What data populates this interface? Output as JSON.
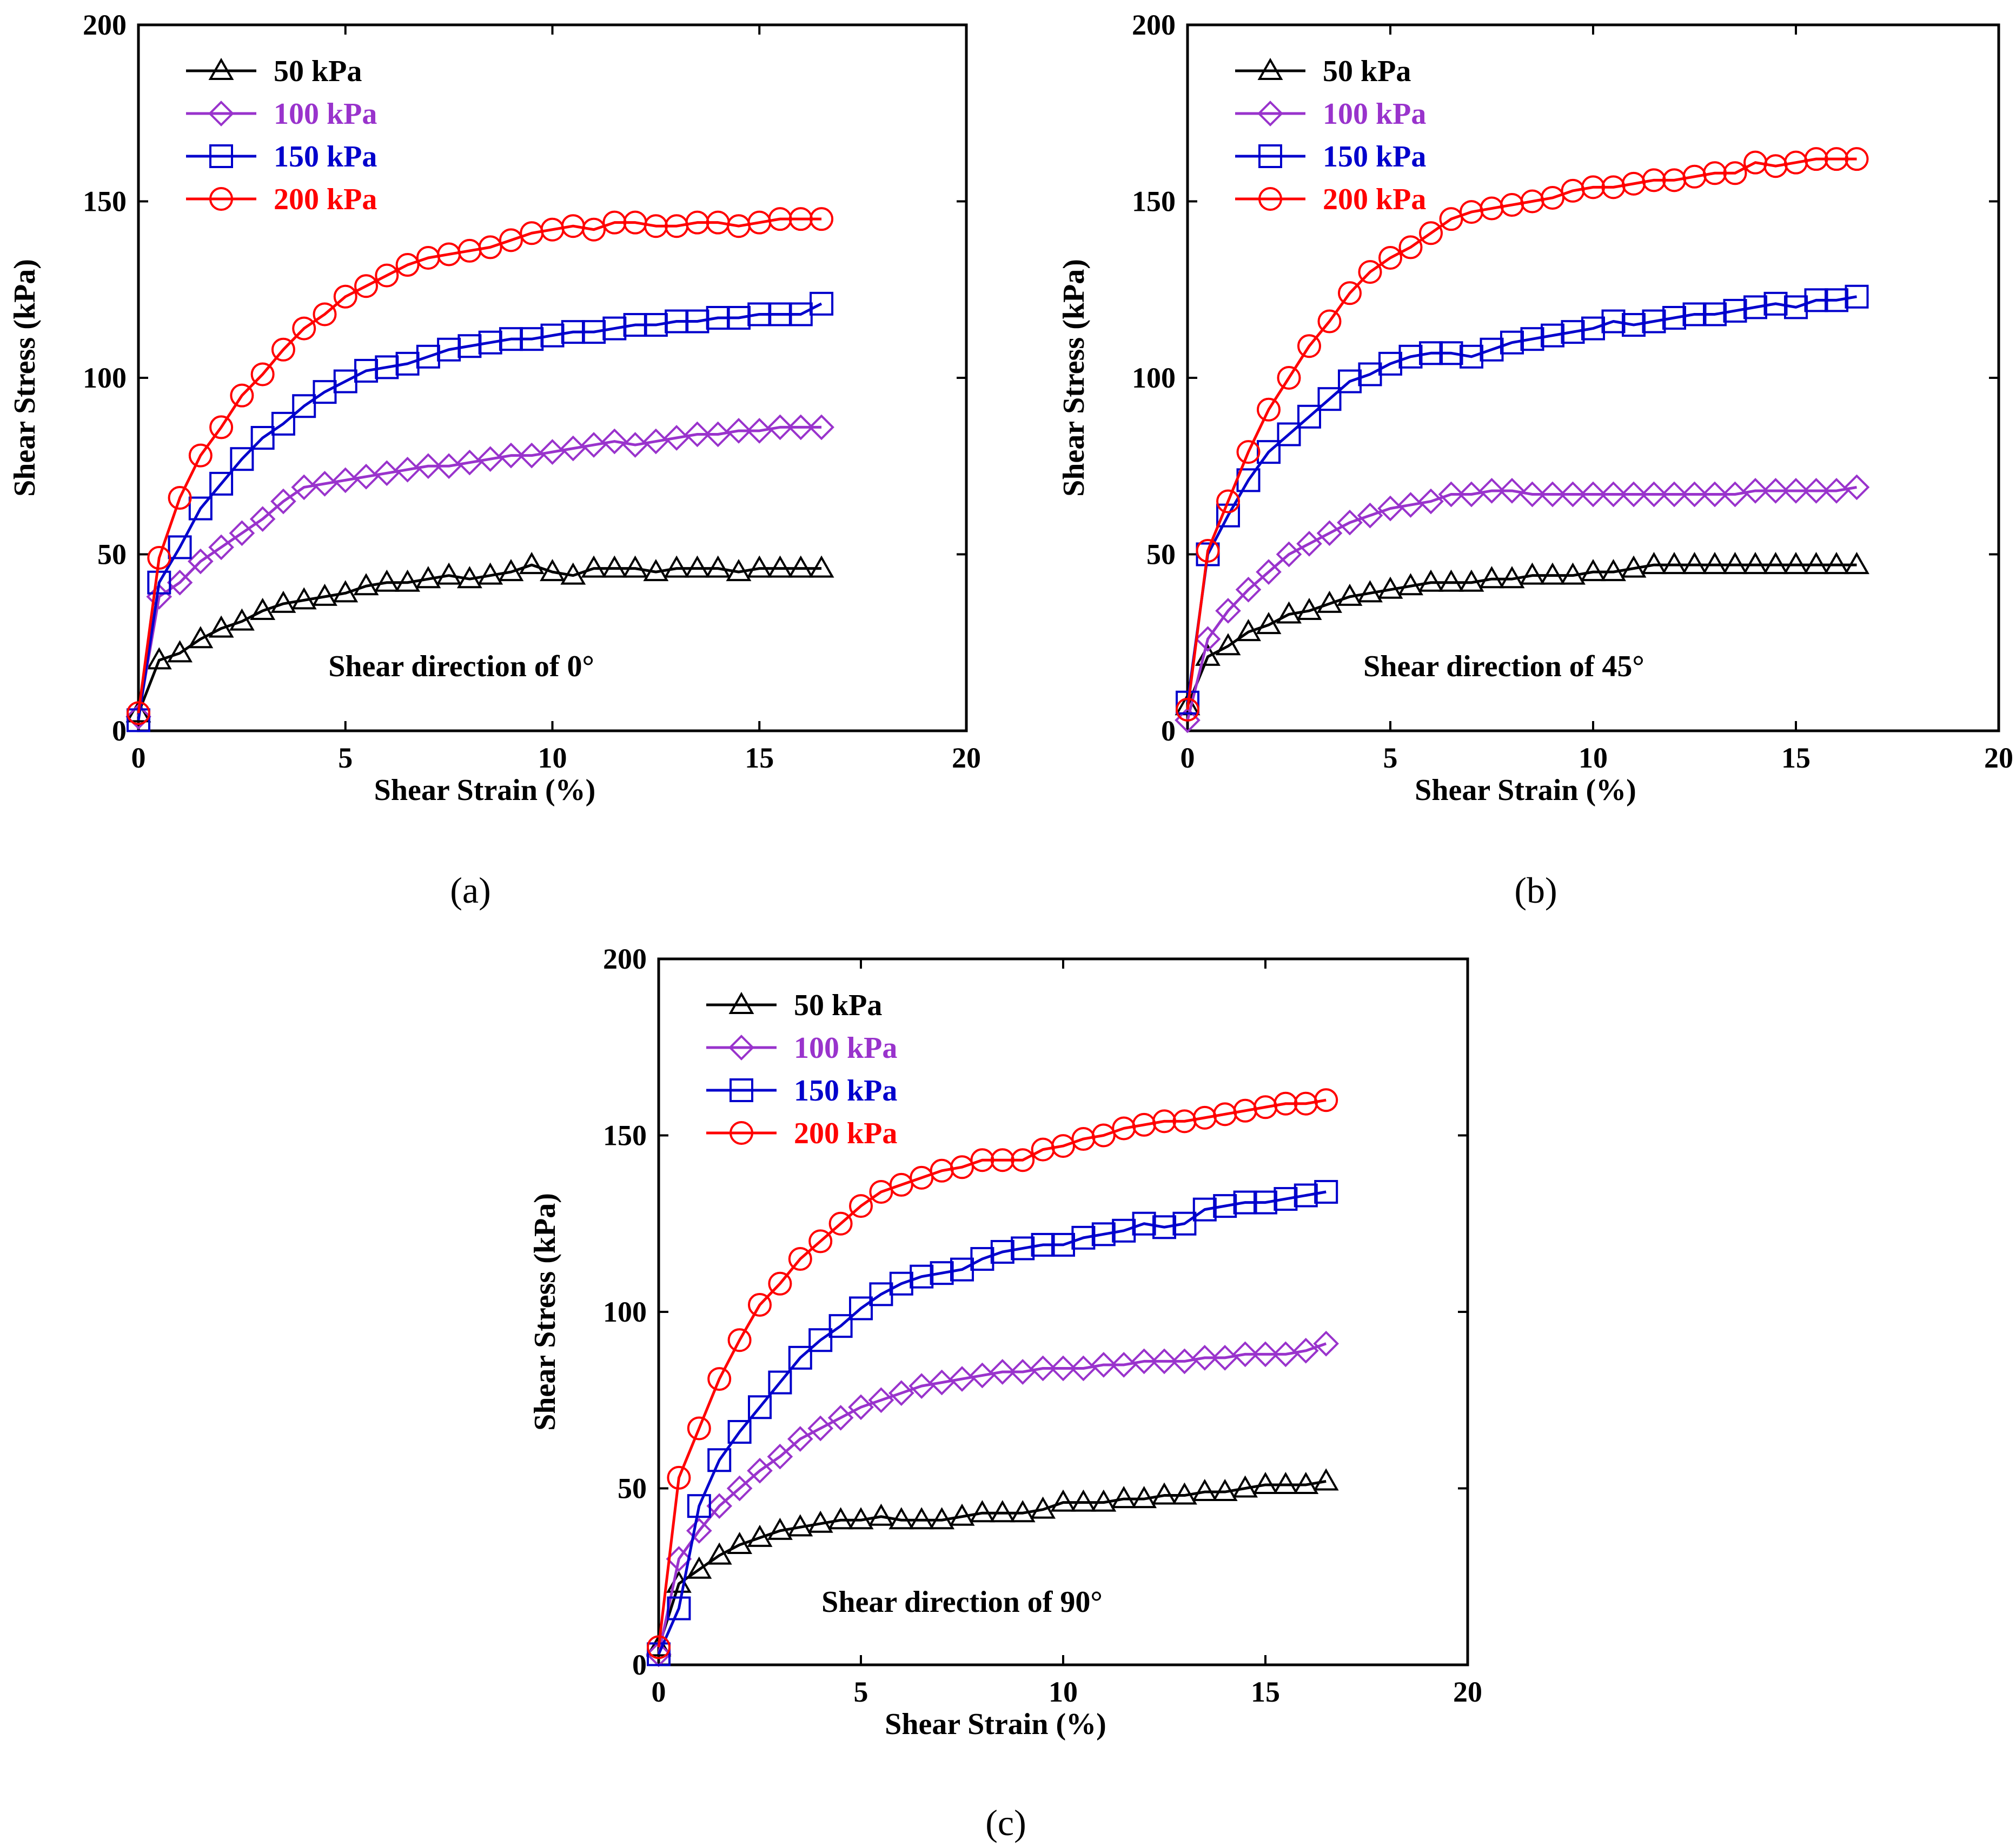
{
  "figure": {
    "panel_labels": [
      "(a)",
      "(b)",
      "(c)"
    ]
  },
  "chart_data": [
    {
      "type": "line",
      "panel": "(a)",
      "annotation": "Shear direction of 0°",
      "xlabel": "Shear Strain (%)",
      "ylabel": "Shear Stress (kPa)",
      "xlim": [
        0,
        20
      ],
      "ylim": [
        0,
        200
      ],
      "xticks": [
        0,
        5,
        10,
        15,
        20
      ],
      "yticks": [
        0,
        50,
        100,
        150,
        200
      ],
      "legend_position": "top-left",
      "series": [
        {
          "name": "50 kPa",
          "color": "#000000",
          "marker": "triangle",
          "x": [
            0,
            0.5,
            1,
            1.5,
            2,
            2.5,
            3,
            3.5,
            4,
            4.5,
            5,
            5.5,
            6,
            6.5,
            7,
            7.5,
            8,
            8.5,
            9,
            9.5,
            10,
            10.5,
            11,
            11.5,
            12,
            12.5,
            13,
            13.5,
            14,
            14.5,
            15,
            15.5,
            16,
            16.5
          ],
          "y": [
            5,
            20,
            22,
            26,
            29,
            31,
            34,
            36,
            37,
            38,
            39,
            41,
            42,
            42,
            43,
            44,
            43,
            44,
            45,
            47,
            45,
            44,
            46,
            46,
            46,
            45,
            46,
            46,
            46,
            45,
            46,
            46,
            46,
            46
          ]
        },
        {
          "name": "100 kPa",
          "color": "#9933cc",
          "marker": "diamond",
          "x": [
            0,
            0.5,
            1,
            1.5,
            2,
            2.5,
            3,
            3.5,
            4,
            4.5,
            5,
            5.5,
            6,
            6.5,
            7,
            7.5,
            8,
            8.5,
            9,
            9.5,
            10,
            10.5,
            11,
            11.5,
            12,
            12.5,
            13,
            13.5,
            14,
            14.5,
            15,
            15.5,
            16,
            16.5
          ],
          "y": [
            4,
            38,
            42,
            48,
            52,
            56,
            60,
            65,
            69,
            70,
            71,
            72,
            73,
            74,
            75,
            75,
            76,
            77,
            78,
            78,
            79,
            80,
            81,
            82,
            81,
            82,
            83,
            84,
            84,
            85,
            85,
            86,
            86,
            86
          ]
        },
        {
          "name": "150 kPa",
          "color": "#0000cc",
          "marker": "square",
          "x": [
            0,
            0.5,
            1,
            1.5,
            2,
            2.5,
            3,
            3.5,
            4,
            4.5,
            5,
            5.5,
            6,
            6.5,
            7,
            7.5,
            8,
            8.5,
            9,
            9.5,
            10,
            10.5,
            11,
            11.5,
            12,
            12.5,
            13,
            13.5,
            14,
            14.5,
            15,
            15.5,
            16,
            16.5
          ],
          "y": [
            3,
            42,
            52,
            63,
            70,
            77,
            83,
            87,
            92,
            96,
            99,
            102,
            103,
            104,
            106,
            108,
            109,
            110,
            111,
            111,
            112,
            113,
            113,
            114,
            115,
            115,
            116,
            116,
            117,
            117,
            118,
            118,
            118,
            121
          ]
        },
        {
          "name": "200 kPa",
          "color": "#ff0000",
          "marker": "circle",
          "x": [
            0,
            0.5,
            1,
            1.5,
            2,
            2.5,
            3,
            3.5,
            4,
            4.5,
            5,
            5.5,
            6,
            6.5,
            7,
            7.5,
            8,
            8.5,
            9,
            9.5,
            10,
            10.5,
            11,
            11.5,
            12,
            12.5,
            13,
            13.5,
            14,
            14.5,
            15,
            15.5,
            16,
            16.5
          ],
          "y": [
            5,
            49,
            66,
            78,
            86,
            95,
            101,
            108,
            114,
            118,
            123,
            126,
            129,
            132,
            134,
            135,
            136,
            137,
            139,
            141,
            142,
            143,
            142,
            144,
            144,
            143,
            143,
            144,
            144,
            143,
            144,
            145,
            145,
            145
          ]
        }
      ]
    },
    {
      "type": "line",
      "panel": "(b)",
      "annotation": "Shear direction of  45°",
      "xlabel": "Shear Strain (%)",
      "ylabel": "Shear Stress (kPa)",
      "xlim": [
        0,
        20
      ],
      "ylim": [
        0,
        200
      ],
      "xticks": [
        0,
        5,
        10,
        15,
        20
      ],
      "yticks": [
        0,
        50,
        100,
        150,
        200
      ],
      "legend_position": "top-left",
      "series": [
        {
          "name": "50 kPa",
          "color": "#000000",
          "marker": "triangle",
          "x": [
            0,
            0.5,
            1,
            1.5,
            2,
            2.5,
            3,
            3.5,
            4,
            4.5,
            5,
            5.5,
            6,
            6.5,
            7,
            7.5,
            8,
            8.5,
            9,
            9.5,
            10,
            10.5,
            11,
            11.5,
            12,
            12.5,
            13,
            13.5,
            14,
            14.5,
            15,
            15.5,
            16,
            16.5
          ],
          "y": [
            7,
            21,
            24,
            28,
            30,
            33,
            34,
            36,
            38,
            39,
            40,
            41,
            42,
            42,
            42,
            43,
            43,
            44,
            44,
            44,
            45,
            45,
            46,
            47,
            47,
            47,
            47,
            47,
            47,
            47,
            47,
            47,
            47,
            47
          ]
        },
        {
          "name": "100 kPa",
          "color": "#9933cc",
          "marker": "diamond",
          "x": [
            0,
            0.5,
            1,
            1.5,
            2,
            2.5,
            3,
            3.5,
            4,
            4.5,
            5,
            5.5,
            6,
            6.5,
            7,
            7.5,
            8,
            8.5,
            9,
            9.5,
            10,
            10.5,
            11,
            11.5,
            12,
            12.5,
            13,
            13.5,
            14,
            14.5,
            15,
            15.5,
            16,
            16.5
          ],
          "y": [
            3,
            26,
            34,
            40,
            45,
            50,
            53,
            56,
            59,
            61,
            63,
            64,
            65,
            67,
            67,
            68,
            68,
            67,
            67,
            67,
            67,
            67,
            67,
            67,
            67,
            67,
            67,
            67,
            68,
            68,
            68,
            68,
            68,
            69
          ]
        },
        {
          "name": "150 kPa",
          "color": "#0000cc",
          "marker": "square",
          "x": [
            0,
            0.5,
            1,
            1.5,
            2,
            2.5,
            3,
            3.5,
            4,
            4.5,
            5,
            5.5,
            6,
            6.5,
            7,
            7.5,
            8,
            8.5,
            9,
            9.5,
            10,
            10.5,
            11,
            11.5,
            12,
            12.5,
            13,
            13.5,
            14,
            14.5,
            15,
            15.5,
            16,
            16.5
          ],
          "y": [
            8,
            50,
            61,
            71,
            79,
            84,
            89,
            94,
            99,
            101,
            104,
            106,
            107,
            107,
            106,
            108,
            110,
            111,
            112,
            113,
            114,
            116,
            115,
            116,
            117,
            118,
            118,
            119,
            120,
            121,
            120,
            122,
            122,
            123
          ]
        },
        {
          "name": "200 kPa",
          "color": "#ff0000",
          "marker": "circle",
          "x": [
            0,
            0.5,
            1,
            1.5,
            2,
            2.5,
            3,
            3.5,
            4,
            4.5,
            5,
            5.5,
            6,
            6.5,
            7,
            7.5,
            8,
            8.5,
            9,
            9.5,
            10,
            10.5,
            11,
            11.5,
            12,
            12.5,
            13,
            13.5,
            14,
            14.5,
            15,
            15.5,
            16,
            16.5
          ],
          "y": [
            6,
            51,
            65,
            79,
            91,
            100,
            109,
            116,
            124,
            130,
            134,
            137,
            141,
            145,
            147,
            148,
            149,
            150,
            151,
            153,
            154,
            154,
            155,
            156,
            156,
            157,
            158,
            158,
            161,
            160,
            161,
            162,
            162,
            162
          ]
        }
      ]
    },
    {
      "type": "line",
      "panel": "(c)",
      "annotation": "Shear direction of 90°",
      "xlabel": "Shear Strain (%)",
      "ylabel": "Shear Stress (kPa)",
      "xlim": [
        0,
        20
      ],
      "ylim": [
        0,
        200
      ],
      "xticks": [
        0,
        5,
        10,
        15,
        20
      ],
      "yticks": [
        0,
        50,
        100,
        150,
        200
      ],
      "legend_position": "top-left",
      "series": [
        {
          "name": "50 kPa",
          "color": "#000000",
          "marker": "triangle",
          "x": [
            0,
            0.5,
            1,
            1.5,
            2,
            2.5,
            3,
            3.5,
            4,
            4.5,
            5,
            5.5,
            6,
            6.5,
            7,
            7.5,
            8,
            8.5,
            9,
            9.5,
            10,
            10.5,
            11,
            11.5,
            12,
            12.5,
            13,
            13.5,
            14,
            14.5,
            15,
            15.5,
            16,
            16.5
          ],
          "y": [
            5,
            23,
            27,
            31,
            34,
            36,
            38,
            39,
            40,
            41,
            41,
            42,
            41,
            41,
            41,
            42,
            43,
            43,
            43,
            44,
            46,
            46,
            46,
            47,
            47,
            48,
            48,
            49,
            49,
            50,
            51,
            51,
            51,
            52
          ]
        },
        {
          "name": "100 kPa",
          "color": "#9933cc",
          "marker": "diamond",
          "x": [
            0,
            0.5,
            1,
            1.5,
            2,
            2.5,
            3,
            3.5,
            4,
            4.5,
            5,
            5.5,
            6,
            6.5,
            7,
            7.5,
            8,
            8.5,
            9,
            9.5,
            10,
            10.5,
            11,
            11.5,
            12,
            12.5,
            13,
            13.5,
            14,
            14.5,
            15,
            15.5,
            16,
            16.5
          ],
          "y": [
            3,
            30,
            38,
            45,
            50,
            55,
            59,
            64,
            67,
            70,
            73,
            75,
            77,
            79,
            80,
            81,
            82,
            83,
            83,
            84,
            84,
            84,
            85,
            85,
            86,
            86,
            86,
            87,
            87,
            88,
            88,
            88,
            89,
            91
          ]
        },
        {
          "name": "150 kPa",
          "color": "#0000cc",
          "marker": "square",
          "x": [
            0,
            0.5,
            1,
            1.5,
            2,
            2.5,
            3,
            3.5,
            4,
            4.5,
            5,
            5.5,
            6,
            6.5,
            7,
            7.5,
            8,
            8.5,
            9,
            9.5,
            10,
            10.5,
            11,
            11.5,
            12,
            12.5,
            13,
            13.5,
            14,
            14.5,
            15,
            15.5,
            16,
            16.5
          ],
          "y": [
            3,
            16,
            45,
            58,
            66,
            73,
            80,
            87,
            92,
            96,
            101,
            105,
            108,
            110,
            111,
            112,
            115,
            117,
            118,
            119,
            119,
            121,
            122,
            123,
            125,
            124,
            125,
            129,
            130,
            131,
            131,
            132,
            133,
            134
          ]
        },
        {
          "name": "200 kPa",
          "color": "#ff0000",
          "marker": "circle",
          "x": [
            0,
            0.5,
            1,
            1.5,
            2,
            2.5,
            3,
            3.5,
            4,
            4.5,
            5,
            5.5,
            6,
            6.5,
            7,
            7.5,
            8,
            8.5,
            9,
            9.5,
            10,
            10.5,
            11,
            11.5,
            12,
            12.5,
            13,
            13.5,
            14,
            14.5,
            15,
            15.5,
            16,
            16.5
          ],
          "y": [
            5,
            53,
            67,
            81,
            92,
            102,
            108,
            115,
            120,
            125,
            130,
            134,
            136,
            138,
            140,
            141,
            143,
            143,
            143,
            146,
            147,
            149,
            150,
            152,
            153,
            154,
            154,
            155,
            156,
            157,
            158,
            159,
            159,
            160
          ]
        }
      ]
    }
  ]
}
